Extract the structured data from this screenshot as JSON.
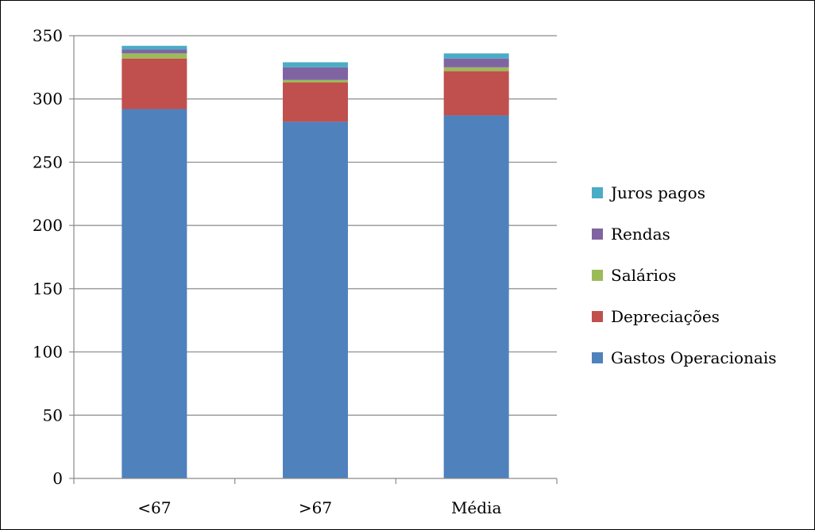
{
  "chart_data": {
    "type": "bar",
    "stacked": true,
    "title": "",
    "xlabel": "",
    "ylabel": "",
    "categories": [
      "<67",
      ">67",
      "Média"
    ],
    "ylim": [
      0,
      350
    ],
    "yticks": [
      0,
      50,
      100,
      150,
      200,
      250,
      300,
      350
    ],
    "grid": true,
    "legend_position": "right",
    "series": [
      {
        "name": "Gastos Operacionais",
        "color": "#4F81BD",
        "values": [
          292,
          282,
          287
        ]
      },
      {
        "name": "Depreciações",
        "color": "#C0504D",
        "values": [
          40,
          31,
          35
        ]
      },
      {
        "name": "Salários",
        "color": "#9BBB59",
        "values": [
          4,
          2,
          3
        ]
      },
      {
        "name": "Rendas",
        "color": "#8064A2",
        "values": [
          3,
          10,
          7
        ]
      },
      {
        "name": "Juros pagos",
        "color": "#4BACC6",
        "values": [
          3,
          4,
          4
        ]
      }
    ]
  }
}
